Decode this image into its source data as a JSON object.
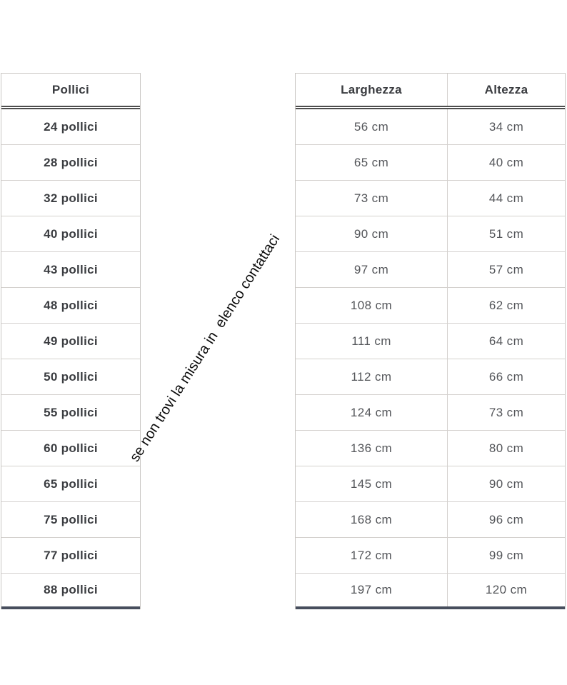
{
  "note": {
    "text": "se non trovi la misura in  elenco contattaci"
  },
  "size_table": {
    "left": {
      "header": "Pollici"
    },
    "right": {
      "headers": [
        "Larghezza",
        "Altezza"
      ]
    },
    "rows": [
      {
        "pollici": "24 pollici",
        "larghezza": "56 cm",
        "altezza": "34 cm"
      },
      {
        "pollici": "28 pollici",
        "larghezza": "65 cm",
        "altezza": "40 cm"
      },
      {
        "pollici": "32 pollici",
        "larghezza": "73 cm",
        "altezza": "44 cm"
      },
      {
        "pollici": "40 pollici",
        "larghezza": "90 cm",
        "altezza": "51 cm"
      },
      {
        "pollici": "43 pollici",
        "larghezza": "97 cm",
        "altezza": "57 cm"
      },
      {
        "pollici": "48 pollici",
        "larghezza": "108 cm",
        "altezza": "62 cm"
      },
      {
        "pollici": "49 pollici",
        "larghezza": "111 cm",
        "altezza": "64 cm"
      },
      {
        "pollici": "50 pollici",
        "larghezza": "112 cm",
        "altezza": "66 cm"
      },
      {
        "pollici": "55 pollici",
        "larghezza": "124 cm",
        "altezza": "73 cm"
      },
      {
        "pollici": "60 pollici",
        "larghezza": "136 cm",
        "altezza": "80 cm"
      },
      {
        "pollici": "65 pollici",
        "larghezza": "145 cm",
        "altezza": "90 cm"
      },
      {
        "pollici": "75 pollici",
        "larghezza": "168 cm",
        "altezza": "96 cm"
      },
      {
        "pollici": "77 pollici",
        "larghezza": "172 cm",
        "altezza": "99 cm"
      },
      {
        "pollici": "88 pollici",
        "larghezza": "197 cm",
        "altezza": "120 cm"
      }
    ]
  },
  "colors": {
    "accent_bottom_border": "#474e5d",
    "grid_line": "#d4d1ce",
    "header_double_line": "#4e4e4e",
    "bold_text": "#3a3c40",
    "value_text": "#54565a"
  }
}
